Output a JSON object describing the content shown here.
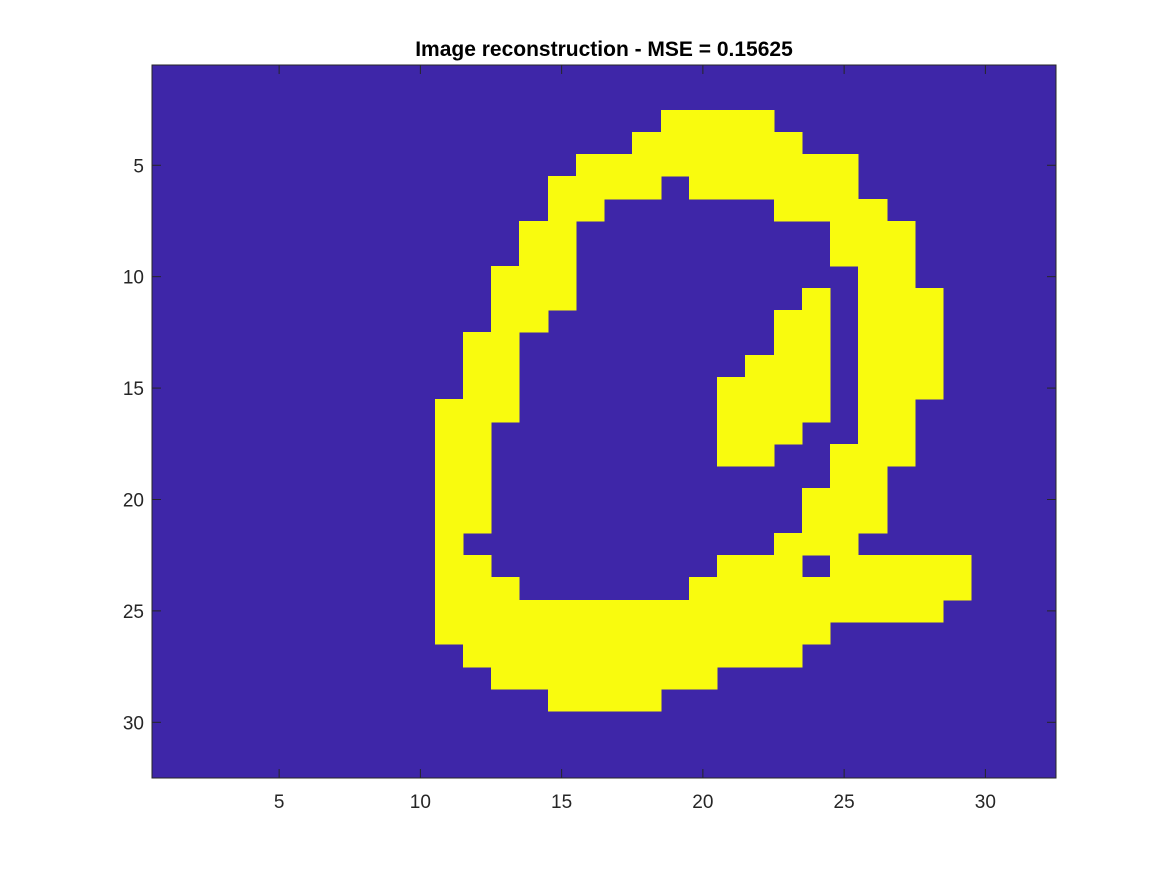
{
  "chart_data": {
    "type": "heatmap",
    "title": "Image reconstruction - MSE  = 0.15625",
    "xlabel": "",
    "ylabel": "",
    "xlim": [
      0.5,
      32.5
    ],
    "ylim": [
      0.5,
      32.5
    ],
    "y_direction": "reversed",
    "x_ticks": [
      5,
      10,
      15,
      20,
      25,
      30
    ],
    "y_ticks": [
      5,
      10,
      15,
      20,
      25,
      30
    ],
    "grid": false,
    "colors": {
      "low": "#3e26a8",
      "high": "#f9fb0e",
      "axis": "#262626"
    },
    "rows": 32,
    "cols": 32,
    "matrix_rows": [
      "00000000000000000000000000000000",
      "00000000000000000000000000000000",
      "00000000000000000011110000000000",
      "00000000000000000111111000000000",
      "00000000000000011111111110000000",
      "00000000000000111101111110000000",
      "00000000000000110000001111000000",
      "00000000000001100000000011100000",
      "00000000000001100000000011100000",
      "00000000000011100000000001100000",
      "00000000000011100000000101110000",
      "00000000000011000000001101110000",
      "00000000000110000000001101110000",
      "00000000000110000000011101110000",
      "00000000000110000000111101110000",
      "00000000001110000000111101100000",
      "00000000001100000000111001100000",
      "00000000001100000000110011100000",
      "00000000001100000000000011000000",
      "00000000001100000000000111000000",
      "00000000001100000000000111000000",
      "00000000001000000000001110000000",
      "00000000001100000000111011111000",
      "00000000001110000001111111111000",
      "00000000001111111111111111110000",
      "00000000001111111111111100000000",
      "00000000000111111111111000000000",
      "00000000000011111111000000000000",
      "00000000000000111100000000000000",
      "00000000000000000000000000000000",
      "00000000000000000000000000000000",
      "00000000000000000000000000000000"
    ]
  }
}
